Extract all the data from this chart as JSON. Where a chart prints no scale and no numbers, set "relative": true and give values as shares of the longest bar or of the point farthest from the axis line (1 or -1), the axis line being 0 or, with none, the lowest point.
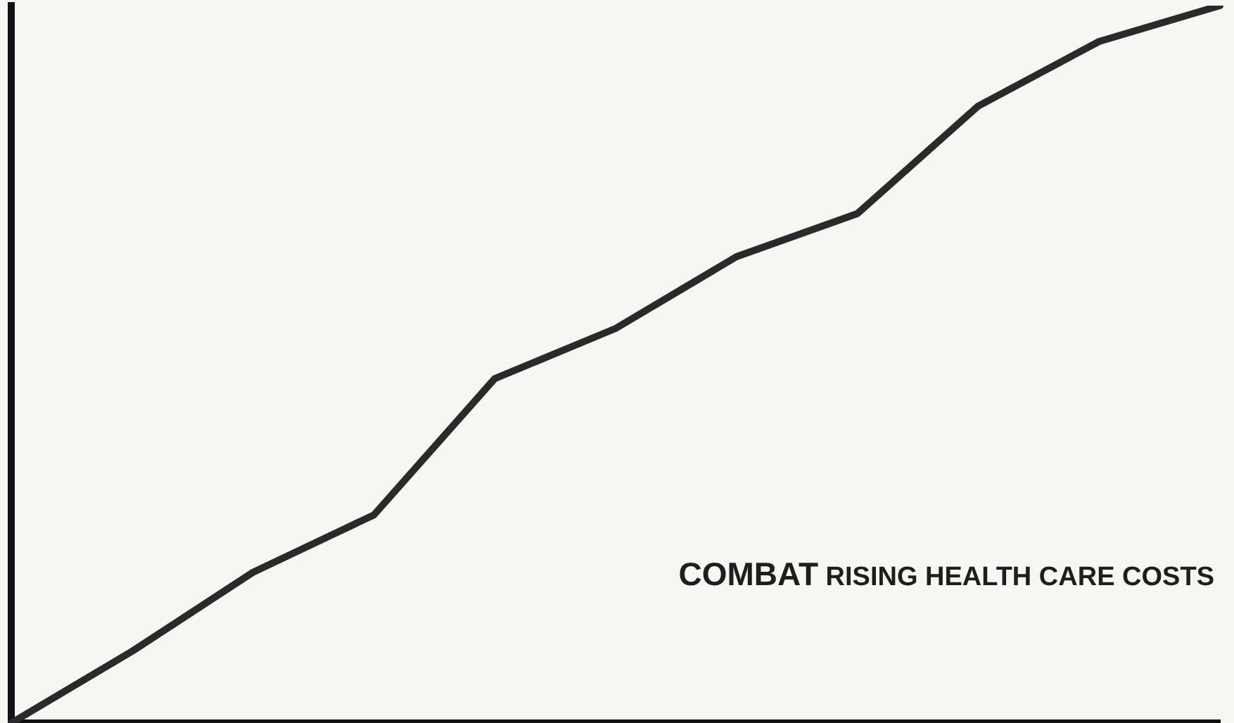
{
  "chart_data": {
    "type": "line",
    "relative": true,
    "categories": [
      null,
      null,
      null,
      null,
      null,
      null,
      null,
      null,
      null,
      null,
      null
    ],
    "series": [
      {
        "color": "#2a2a2a",
        "values": [
          0,
          0.1,
          0.21,
          0.29,
          0.48,
          0.55,
          0.65,
          0.71,
          0.86,
          0.95,
          1
        ]
      }
    ],
    "marker": "none",
    "line_style": "solid",
    "grid": false,
    "legend": false,
    "annotations": [
      "COMBAT RISING HEALTH CARE COSTS"
    ]
  }
}
